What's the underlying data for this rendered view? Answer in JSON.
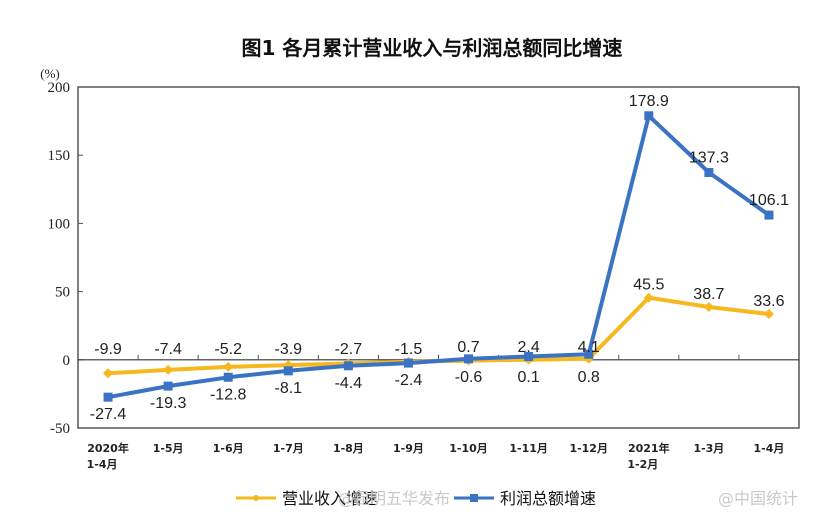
{
  "chart_data": {
    "type": "line",
    "title": "图1  各月累计营业收入与利润总额同比增速",
    "ylabel": "(%)",
    "xlabel": "",
    "ylim": [
      -50,
      200
    ],
    "yticks": [
      -50,
      0,
      50,
      100,
      150,
      200
    ],
    "grid": false,
    "legend_position": "bottom",
    "categories": [
      [
        "2020年",
        "1-4月"
      ],
      [
        "1-5月"
      ],
      [
        "1-6月"
      ],
      [
        "1-7月"
      ],
      [
        "1-8月"
      ],
      [
        "1-9月"
      ],
      [
        "1-10月"
      ],
      [
        "1-11月"
      ],
      [
        "1-12月"
      ],
      [
        "2021年",
        "1-2月"
      ],
      [
        "1-3月"
      ],
      [
        "1-4月"
      ]
    ],
    "series": [
      {
        "name": "营业收入增速",
        "color": "#F5B81E",
        "values": [
          -9.9,
          -7.4,
          -5.2,
          -3.9,
          -2.7,
          -1.5,
          -0.6,
          0.1,
          0.8,
          45.5,
          38.7,
          33.6
        ],
        "labels": [
          "-9.9",
          "-7.4",
          "-5.2",
          "-3.9",
          "-2.7",
          "-1.5",
          "-0.6",
          "0.1",
          "0.8",
          "45.5",
          "38.7",
          "33.6"
        ]
      },
      {
        "name": "利润总额增速",
        "color": "#3A73C4",
        "values": [
          -27.4,
          -19.3,
          -12.8,
          -8.1,
          -4.4,
          -2.4,
          0.7,
          2.4,
          4.1,
          178.9,
          137.3,
          106.1
        ],
        "labels": [
          "-27.4",
          "-19.3",
          "-12.8",
          "-8.1",
          "-4.4",
          "-2.4",
          "0.7",
          "2.4",
          "4.1",
          "178.9",
          "137.3",
          "106.1"
        ]
      }
    ]
  },
  "legend": {
    "items": [
      {
        "label": "营业收入增速",
        "color": "#F5B81E"
      },
      {
        "label": "利润总额增速",
        "color": "#3A73C4"
      }
    ]
  },
  "watermarks": [
    "@昆明五华发布",
    "@中国统计"
  ]
}
